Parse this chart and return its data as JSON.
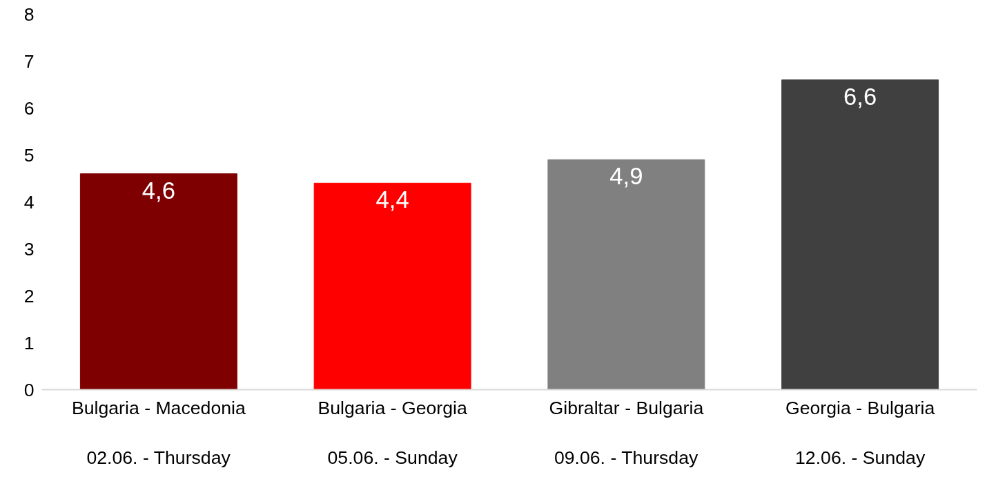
{
  "chart_data": {
    "type": "bar",
    "categories": [
      "Bulgaria - Macedonia\n\n02.06. - Thursday",
      "Bulgaria - Georgia\n\n05.06. - Sunday",
      "Gibraltar - Bulgaria\n\n09.06. - Thursday",
      "Georgia - Bulgaria\n\n12.06. - Sunday"
    ],
    "values": [
      4.6,
      4.4,
      4.9,
      6.6
    ],
    "colors": [
      "#7f0000",
      "#ff0000",
      "#808080",
      "#404040"
    ],
    "value_labels": [
      "4,6",
      "4,4",
      "4,9",
      "6,6"
    ],
    "ylim": [
      0,
      8
    ],
    "yticks": [
      0,
      1,
      2,
      3,
      4,
      5,
      6,
      7,
      8
    ],
    "grid": false
  }
}
